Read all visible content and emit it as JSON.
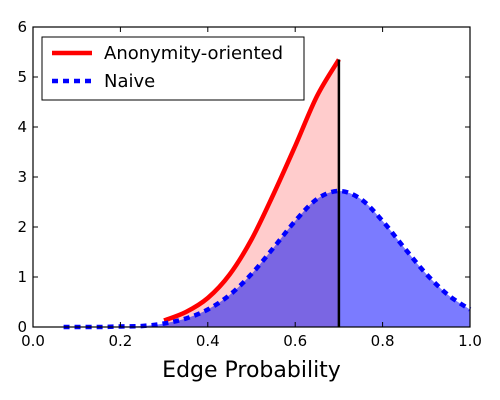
{
  "chart_data": {
    "type": "area",
    "title": "",
    "xlabel": "Edge Probability",
    "ylabel": "",
    "xlim": [
      0.0,
      1.0
    ],
    "ylim": [
      0,
      6
    ],
    "x_ticks": [
      "0.0",
      "0.2",
      "0.4",
      "0.6",
      "0.8",
      "1.0"
    ],
    "y_ticks": [
      "0",
      "1",
      "2",
      "3",
      "4",
      "5",
      "6"
    ],
    "grid": false,
    "legend_position": "top-left",
    "vertical_line_x": 0.7,
    "series": [
      {
        "name": "Anonymity-oriented",
        "style": "solid",
        "line_color": "#ff0000",
        "fill_color": "#ffcccc",
        "x": [
          0.3,
          0.35,
          0.4,
          0.45,
          0.5,
          0.55,
          0.6,
          0.65,
          0.7
        ],
        "values": [
          0.13,
          0.3,
          0.58,
          1.05,
          1.75,
          2.65,
          3.62,
          4.62,
          5.35
        ]
      },
      {
        "name": "Naive",
        "style": "dashed",
        "line_color": "#0000ff",
        "fill_color": "#7b7bff",
        "overlap_fill_color": "#7a66e3",
        "x": [
          0.07,
          0.1,
          0.15,
          0.2,
          0.25,
          0.3,
          0.35,
          0.4,
          0.45,
          0.5,
          0.55,
          0.6,
          0.65,
          0.7,
          0.75,
          0.8,
          0.85,
          0.9,
          0.95,
          1.0
        ],
        "values": [
          0.0,
          0.0,
          0.0,
          0.01,
          0.02,
          0.07,
          0.17,
          0.35,
          0.64,
          1.06,
          1.58,
          2.12,
          2.56,
          2.72,
          2.56,
          2.12,
          1.58,
          1.06,
          0.64,
          0.35
        ]
      }
    ]
  }
}
